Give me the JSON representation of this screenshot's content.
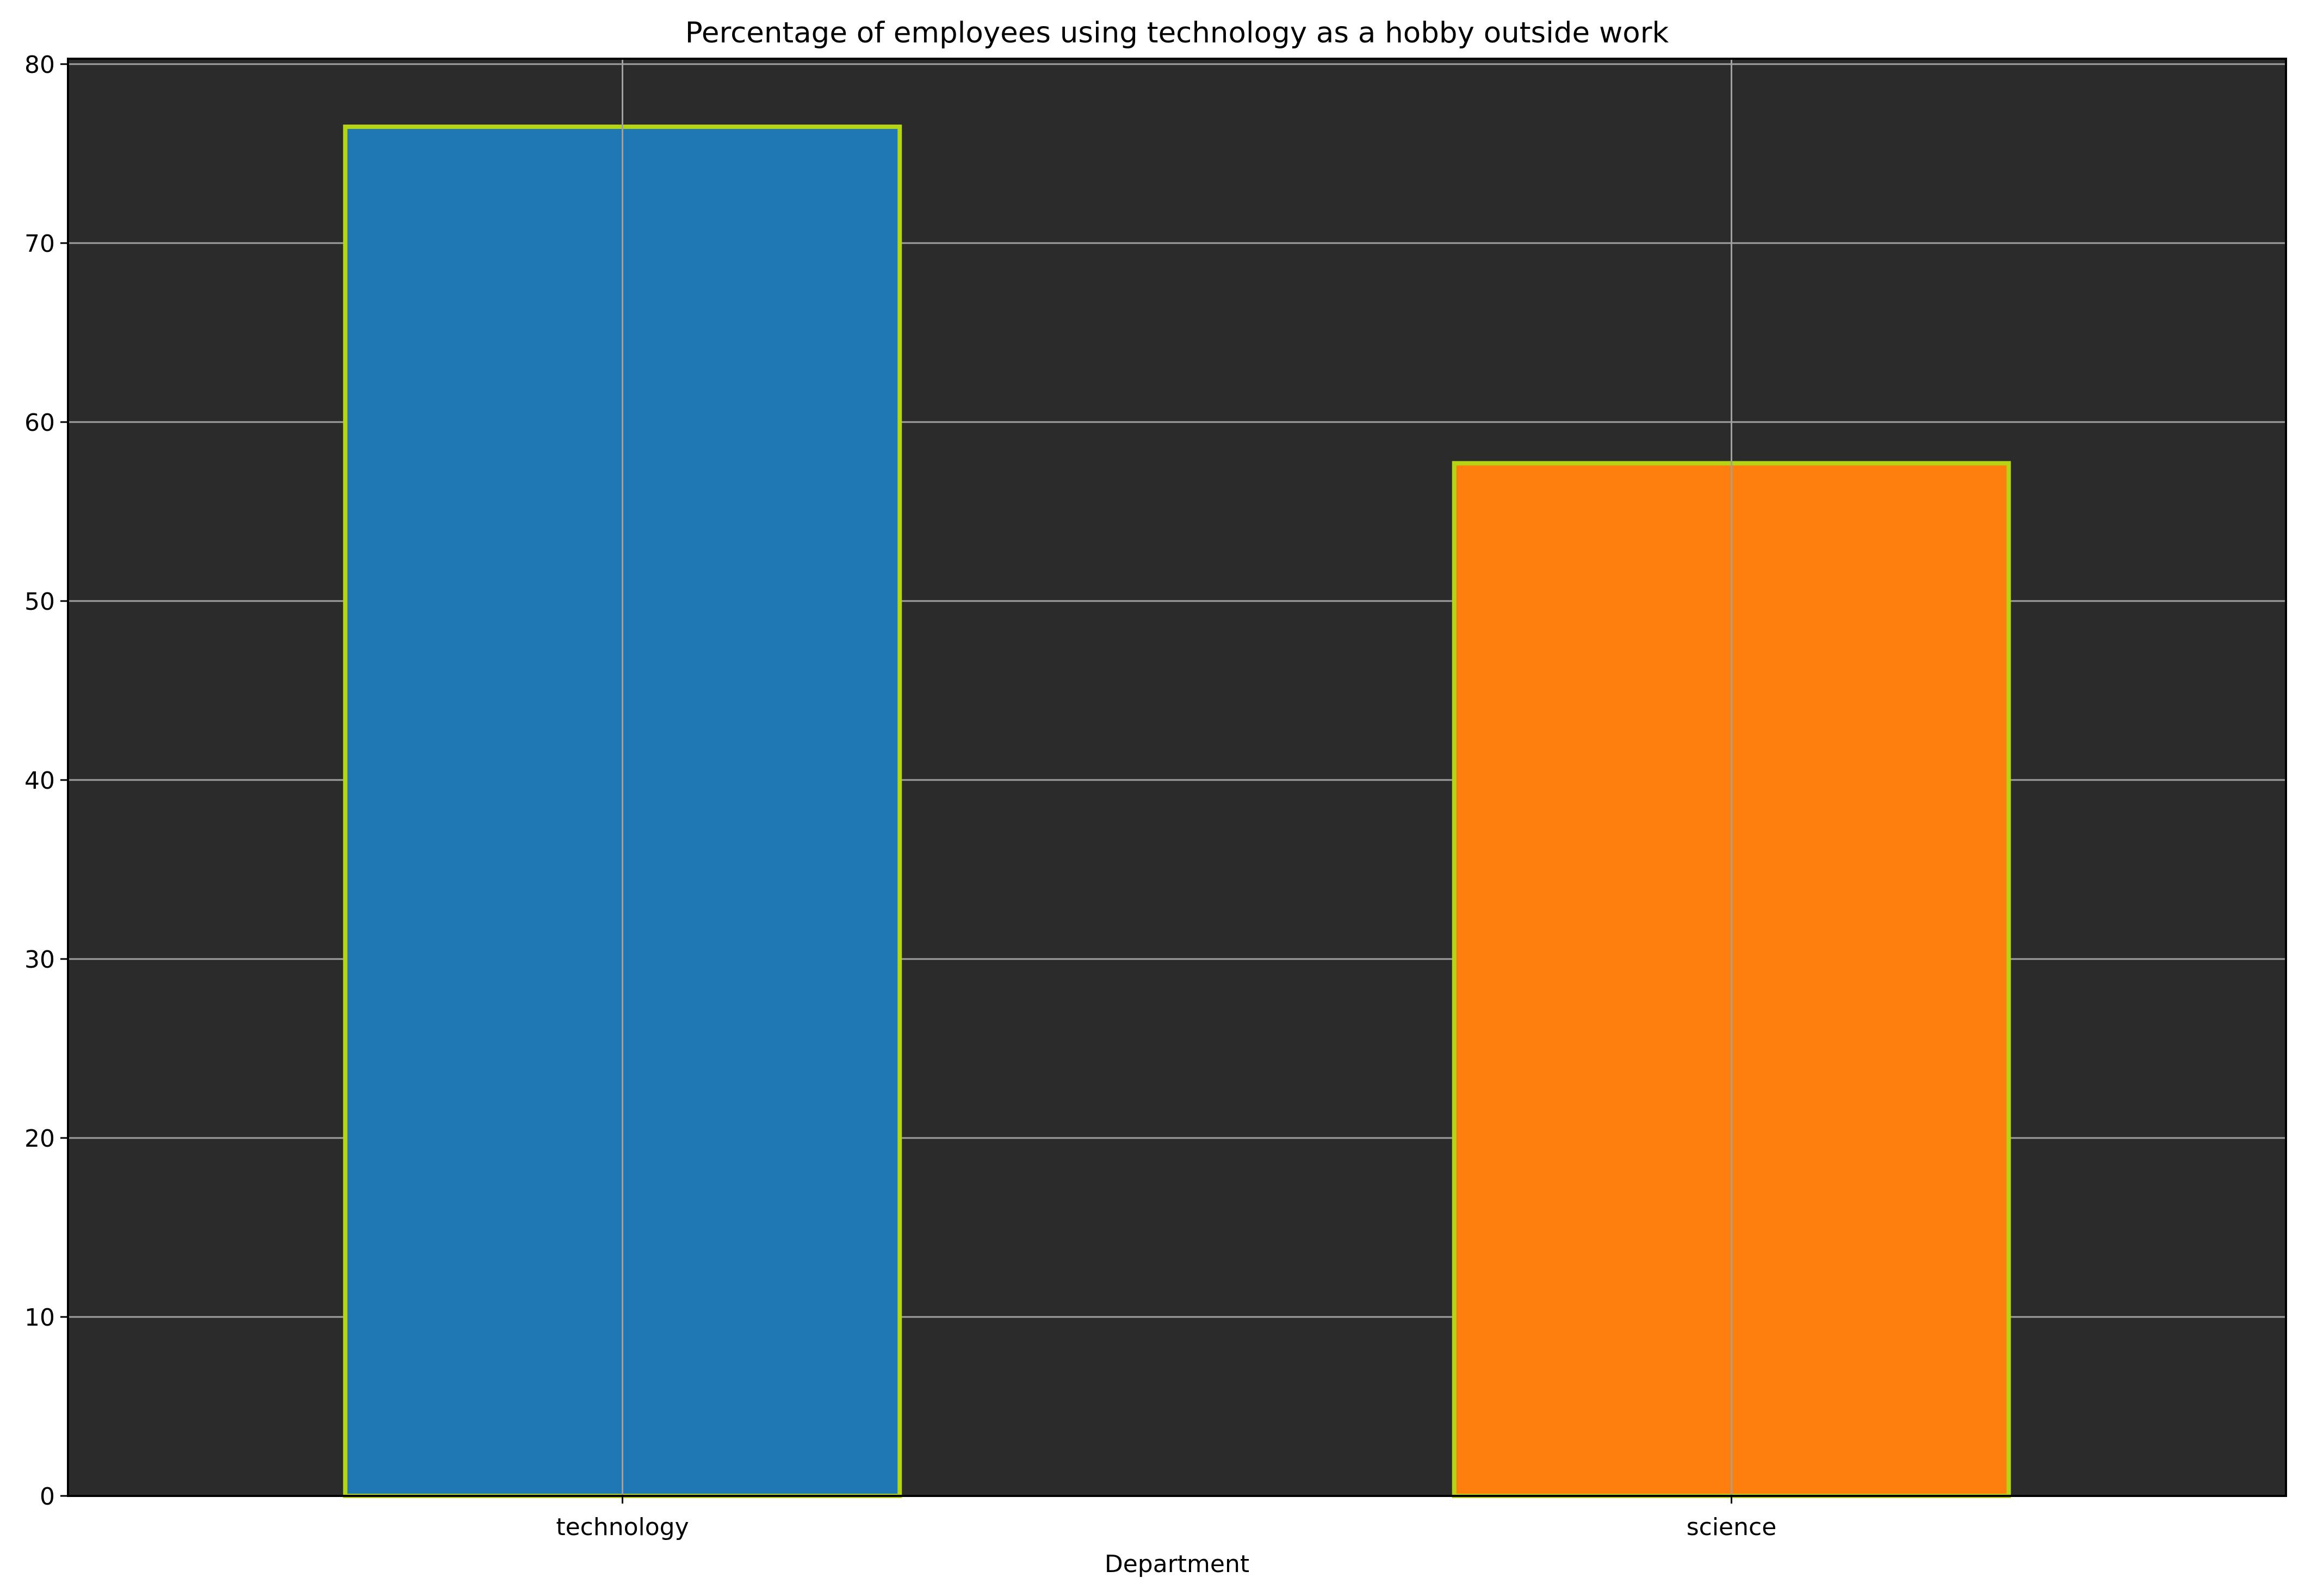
{
  "chart_data": {
    "type": "bar",
    "title": "Percentage of employees using technology as a hobby outside work",
    "xlabel": "Department",
    "ylabel": "",
    "categories": [
      "technology",
      "science"
    ],
    "values": [
      76.5,
      57.7
    ],
    "bar_colors": [
      "#1f77b4",
      "#ff7f0e"
    ],
    "bar_edge_color": "#b5d414",
    "plot_background": "#2b2b2b",
    "grid_color": "#a0a0a0",
    "grid": true,
    "ylim": [
      0,
      80.3
    ],
    "yticks": [
      0,
      10,
      20,
      30,
      40,
      50,
      60,
      70,
      80
    ],
    "ytick_labels": [
      "0",
      "10",
      "20",
      "30",
      "40",
      "50",
      "60",
      "70",
      "80"
    ]
  }
}
